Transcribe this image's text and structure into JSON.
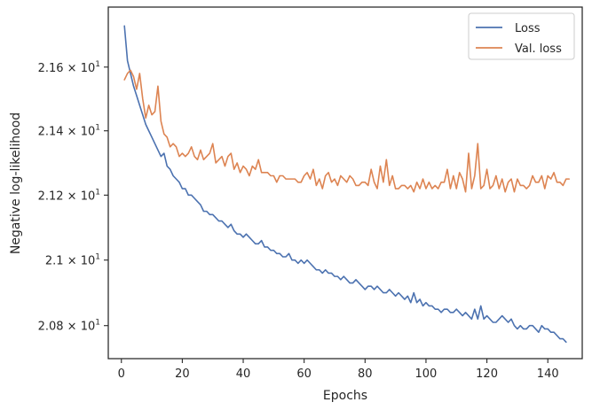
{
  "chart_data": {
    "type": "line",
    "xlabel": "Epochs",
    "ylabel": "Negative log-likelihood",
    "xlim": [
      -4.3,
      151.3
    ],
    "ylim": [
      20.7,
      21.79
    ],
    "y_scale": "log",
    "grid": false,
    "legend_placement": "top-right",
    "x_ticks": [
      0,
      20,
      40,
      60,
      80,
      100,
      120,
      140
    ],
    "y_ticks": [
      {
        "value": 20.8,
        "mantissa": "2.08",
        "exponent": "1"
      },
      {
        "value": 21.0,
        "mantissa": "2.1",
        "exponent": "1"
      },
      {
        "value": 21.2,
        "mantissa": "2.12",
        "exponent": "1"
      },
      {
        "value": 21.4,
        "mantissa": "2.14",
        "exponent": "1"
      },
      {
        "value": 21.6,
        "mantissa": "2.16",
        "exponent": "1"
      }
    ],
    "series": [
      {
        "name": "Loss",
        "color": "#4c72b0",
        "x_start": 1,
        "x_step": 1,
        "values": [
          21.73,
          21.62,
          21.58,
          21.54,
          21.51,
          21.48,
          21.45,
          21.42,
          21.4,
          21.38,
          21.36,
          21.34,
          21.32,
          21.33,
          21.29,
          21.28,
          21.26,
          21.25,
          21.24,
          21.22,
          21.22,
          21.2,
          21.2,
          21.19,
          21.18,
          21.17,
          21.15,
          21.15,
          21.14,
          21.14,
          21.13,
          21.12,
          21.12,
          21.11,
          21.1,
          21.11,
          21.09,
          21.08,
          21.08,
          21.07,
          21.08,
          21.07,
          21.06,
          21.05,
          21.05,
          21.06,
          21.04,
          21.04,
          21.03,
          21.03,
          21.02,
          21.02,
          21.01,
          21.01,
          21.02,
          21.0,
          21.0,
          20.99,
          21.0,
          20.99,
          21.0,
          20.99,
          20.98,
          20.97,
          20.97,
          20.96,
          20.97,
          20.96,
          20.96,
          20.95,
          20.95,
          20.94,
          20.95,
          20.94,
          20.93,
          20.93,
          20.94,
          20.93,
          20.92,
          20.91,
          20.92,
          20.92,
          20.91,
          20.92,
          20.91,
          20.9,
          20.9,
          20.91,
          20.9,
          20.89,
          20.9,
          20.89,
          20.88,
          20.89,
          20.87,
          20.9,
          20.87,
          20.88,
          20.86,
          20.87,
          20.86,
          20.86,
          20.85,
          20.85,
          20.84,
          20.85,
          20.85,
          20.84,
          20.84,
          20.85,
          20.84,
          20.83,
          20.84,
          20.83,
          20.82,
          20.85,
          20.82,
          20.86,
          20.82,
          20.83,
          20.82,
          20.81,
          20.81,
          20.82,
          20.83,
          20.82,
          20.81,
          20.82,
          20.8,
          20.79,
          20.8,
          20.79,
          20.79,
          20.8,
          20.8,
          20.79,
          20.78,
          20.8,
          20.79,
          20.79,
          20.78,
          20.78,
          20.77,
          20.76,
          20.76,
          20.75
        ]
      },
      {
        "name": "Val. loss",
        "color": "#dd8452",
        "x_start": 1,
        "x_step": 1,
        "values": [
          21.56,
          21.58,
          21.59,
          21.57,
          21.53,
          21.58,
          21.5,
          21.44,
          21.48,
          21.45,
          21.46,
          21.54,
          21.43,
          21.39,
          21.38,
          21.35,
          21.36,
          21.35,
          21.32,
          21.33,
          21.32,
          21.33,
          21.35,
          21.32,
          21.31,
          21.34,
          21.31,
          21.32,
          21.33,
          21.36,
          21.3,
          21.31,
          21.32,
          21.29,
          21.32,
          21.33,
          21.28,
          21.3,
          21.27,
          21.29,
          21.28,
          21.26,
          21.29,
          21.28,
          21.31,
          21.27,
          21.27,
          21.27,
          21.26,
          21.26,
          21.24,
          21.26,
          21.26,
          21.25,
          21.25,
          21.25,
          21.25,
          21.24,
          21.24,
          21.26,
          21.27,
          21.25,
          21.28,
          21.23,
          21.25,
          21.22,
          21.26,
          21.27,
          21.24,
          21.25,
          21.23,
          21.26,
          21.25,
          21.24,
          21.26,
          21.25,
          21.23,
          21.23,
          21.24,
          21.24,
          21.23,
          21.28,
          21.24,
          21.22,
          21.29,
          21.24,
          21.31,
          21.23,
          21.26,
          21.22,
          21.22,
          21.23,
          21.23,
          21.22,
          21.23,
          21.21,
          21.24,
          21.22,
          21.25,
          21.22,
          21.24,
          21.22,
          21.23,
          21.22,
          21.24,
          21.24,
          21.28,
          21.22,
          21.26,
          21.22,
          21.27,
          21.25,
          21.21,
          21.33,
          21.22,
          21.26,
          21.36,
          21.22,
          21.23,
          21.28,
          21.22,
          21.23,
          21.26,
          21.22,
          21.25,
          21.21,
          21.24,
          21.25,
          21.21,
          21.25,
          21.23,
          21.23,
          21.22,
          21.23,
          21.26,
          21.24,
          21.24,
          21.26,
          21.22,
          21.26,
          21.25,
          21.27,
          21.24,
          21.24,
          21.23,
          21.25,
          21.25
        ]
      }
    ]
  }
}
